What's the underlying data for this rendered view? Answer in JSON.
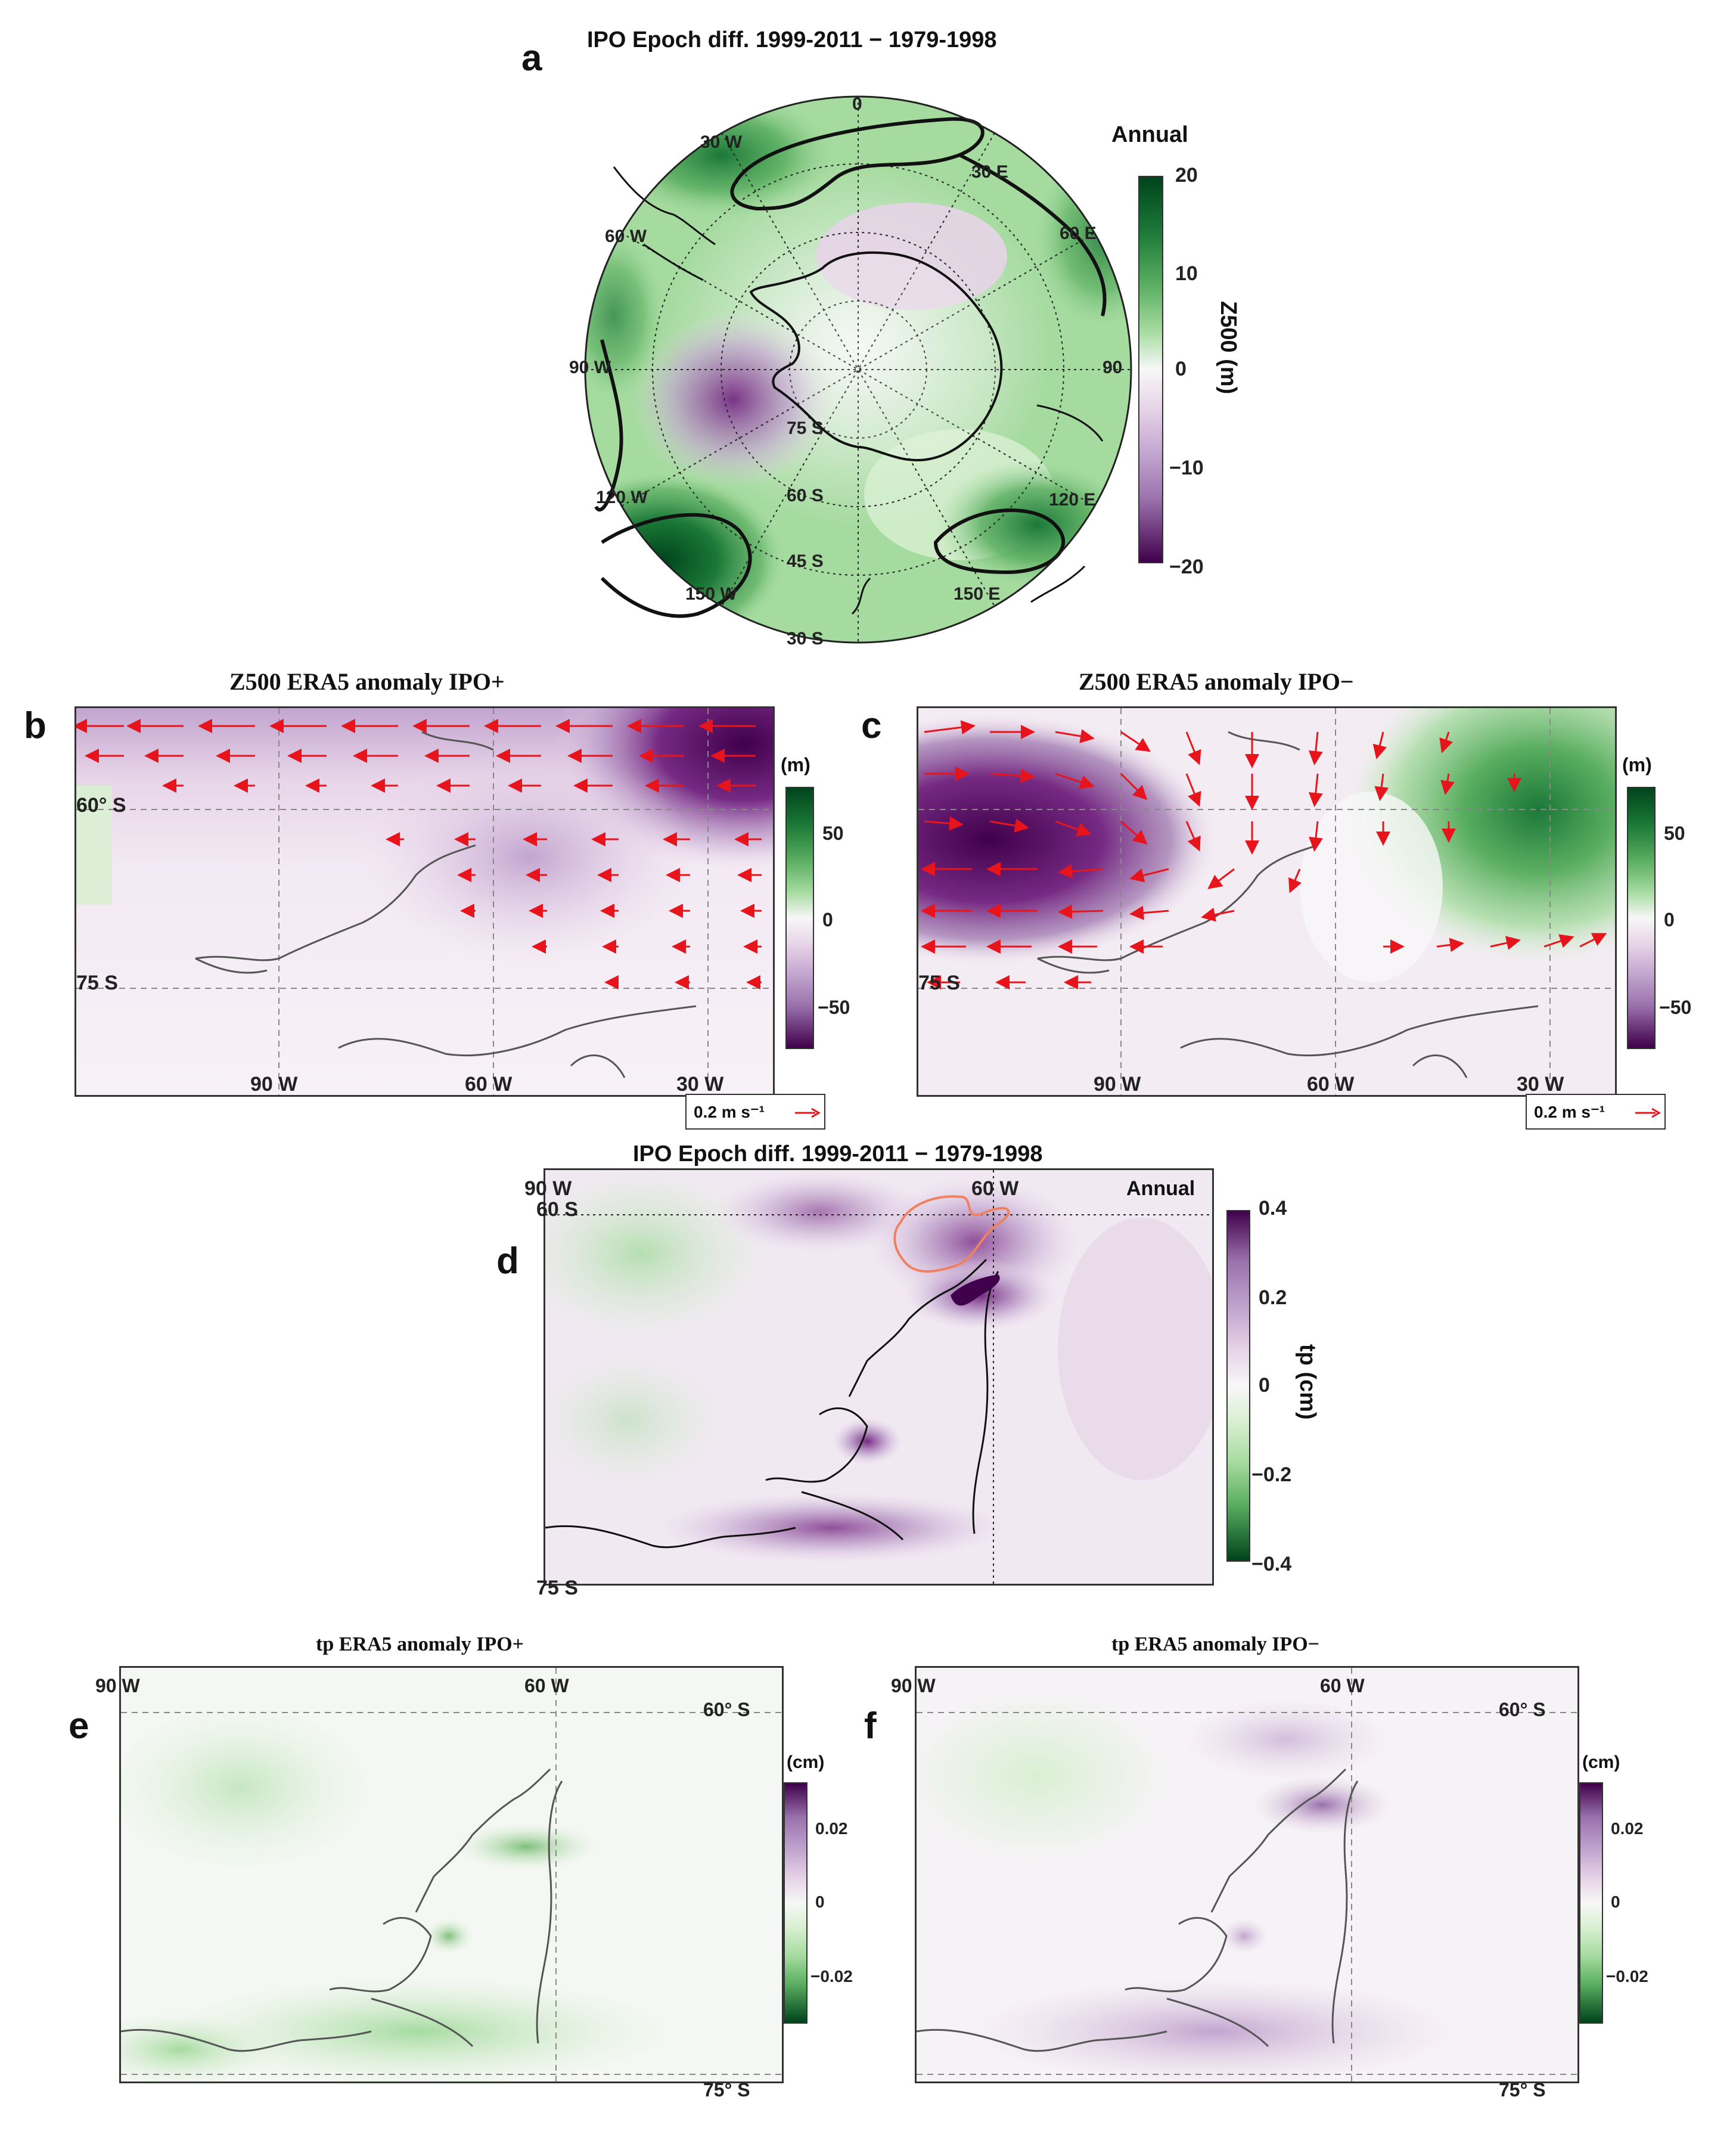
{
  "panel_a": {
    "letter": "a",
    "title": "IPO Epoch diff. 1999-2011 − 1979-1998",
    "season": "Annual",
    "colorbar": {
      "label": "Z500 (m)",
      "ticks": [
        "20",
        "10",
        "0",
        "−10",
        "−20"
      ]
    },
    "lon_labels": [
      "0",
      "30 E",
      "60 E",
      "90",
      "120 E",
      "150 E",
      "150 W",
      "120 W",
      "90 W",
      "60 W",
      "30 W"
    ],
    "lat_labels": [
      "75 S",
      "60 S",
      "45 S",
      "30 S"
    ],
    "colors": {
      "high": "#00441b",
      "low": "#40004b",
      "mid": "#f7f7f7"
    }
  },
  "panel_b": {
    "letter": "b",
    "title": "Z500 ERA5 anomaly  IPO+",
    "colorbar": {
      "unit": "(m)",
      "ticks": [
        "50",
        "0",
        "−50"
      ]
    },
    "lat_labels": [
      "60° S",
      "75 S"
    ],
    "lon_labels": [
      "90 W",
      "60 W",
      "30 W"
    ],
    "vector_key": "0.2 m s⁻¹"
  },
  "panel_c": {
    "letter": "c",
    "title": "Z500 ERA5 anomaly  IPO−",
    "colorbar": {
      "unit": "(m)",
      "ticks": [
        "50",
        "0",
        "−50"
      ]
    },
    "lat_labels": [
      "75 S"
    ],
    "lon_labels": [
      "90 W",
      "60 W",
      "30 W"
    ],
    "vector_key": "0.2 m s⁻¹"
  },
  "panel_d": {
    "letter": "d",
    "title": "IPO Epoch diff. 1999-2011 − 1979-1998",
    "season": "Annual",
    "colorbar": {
      "label": "tp (cm)",
      "ticks": [
        "0.4",
        "0.2",
        "0",
        "−0.2",
        "−0.4"
      ]
    },
    "lon_labels": [
      "90 W",
      "60 W"
    ],
    "lat_labels": [
      "60 S",
      "75 S"
    ]
  },
  "panel_e": {
    "letter": "e",
    "title": "tp ERA5 anomaly  IPO+",
    "colorbar": {
      "unit": "(cm)",
      "ticks": [
        "0.02",
        "0",
        "−0.02"
      ]
    },
    "lon_labels": [
      "90 W",
      "60 W"
    ],
    "lat_labels": [
      "60° S",
      "75° S"
    ]
  },
  "panel_f": {
    "letter": "f",
    "title": "tp ERA5 anomaly  IPO−",
    "colorbar": {
      "unit": "(cm)",
      "ticks": [
        "0.02",
        "0",
        "−0.02"
      ]
    },
    "lon_labels": [
      "90 W",
      "60 W"
    ],
    "lat_labels": [
      "60° S",
      "75° S"
    ]
  }
}
